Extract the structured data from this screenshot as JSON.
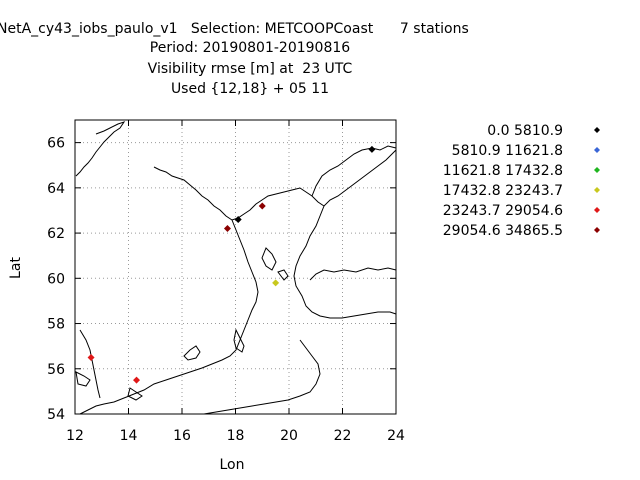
{
  "title": {
    "line1": "NetA_cy43_iobs_paulo_v1   Selection: METCOOPCoast      7 stations",
    "line2": "Period: 20190801-20190816",
    "line3": "Visibility rmse [m] at  23 UTC",
    "line4": "Used {12,18} + 05 11"
  },
  "chart_data": {
    "type": "scatter",
    "xlabel": "Lon",
    "ylabel": "Lat",
    "xlim": [
      12,
      24
    ],
    "ylim": [
      54,
      67
    ],
    "xticks": [
      "12",
      "14",
      "16",
      "18",
      "20",
      "22",
      "24"
    ],
    "yticks": [
      "54",
      "56",
      "58",
      "60",
      "62",
      "64",
      "66"
    ],
    "grid": true,
    "legend_position": "right",
    "legend": [
      {
        "label": "0.0 5810.9",
        "color": "#000000"
      },
      {
        "label": "5810.9 11621.8",
        "color": "#3a66d6"
      },
      {
        "label": "11621.8 17432.8",
        "color": "#1fb51f"
      },
      {
        "label": "17432.8 23243.7",
        "color": "#c8c81e"
      },
      {
        "label": "23243.7 29054.6",
        "color": "#e01818"
      },
      {
        "label": "29054.6 34865.5",
        "color": "#8b0000"
      }
    ],
    "points": [
      {
        "lon": 23.1,
        "lat": 65.7,
        "cls": 0
      },
      {
        "lon": 18.1,
        "lat": 62.6,
        "cls": 0
      },
      {
        "lon": 19.0,
        "lat": 63.2,
        "cls": 5
      },
      {
        "lon": 17.7,
        "lat": 62.2,
        "cls": 5
      },
      {
        "lon": 19.5,
        "lat": 59.8,
        "cls": 3
      },
      {
        "lon": 12.6,
        "lat": 56.5,
        "cls": 4
      },
      {
        "lon": 14.3,
        "lat": 55.5,
        "cls": 4
      }
    ]
  }
}
